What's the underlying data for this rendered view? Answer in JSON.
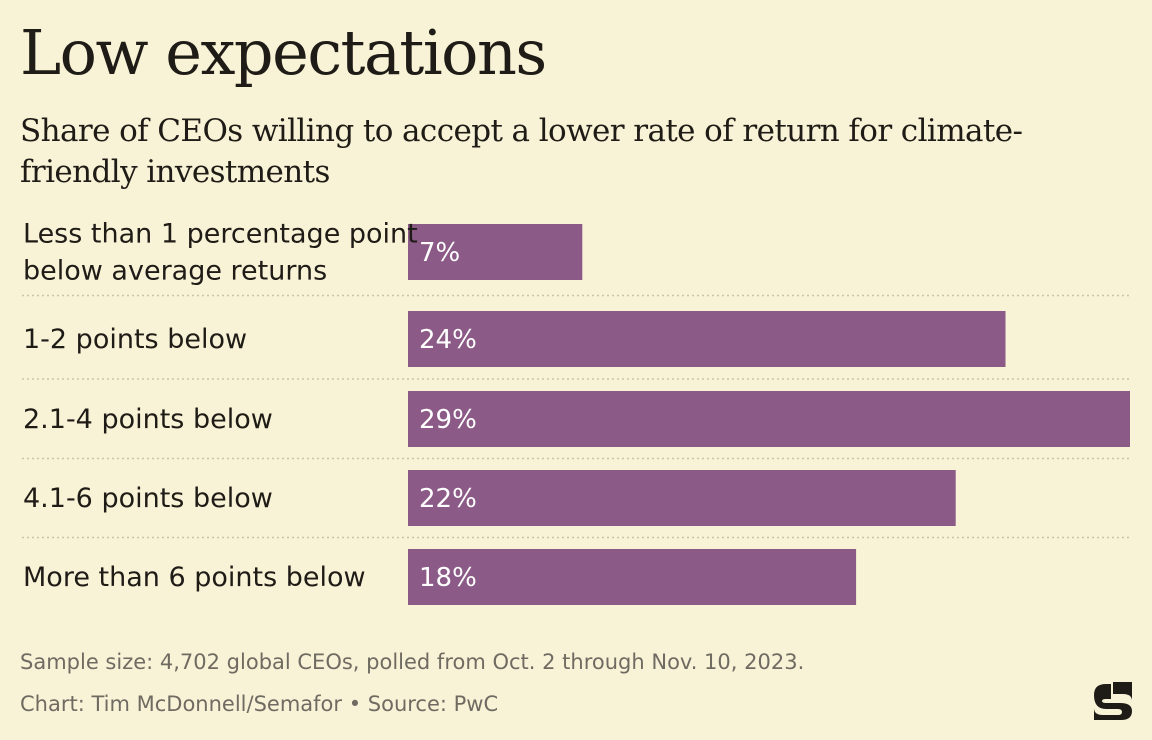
{
  "title": "Low expectations",
  "subtitle": "Share of CEOs willing to accept a lower rate of return for climate-friendly investments",
  "chart_data": {
    "type": "bar",
    "orientation": "horizontal",
    "categories": [
      [
        "Less than 1 percentage point",
        "below average returns"
      ],
      [
        "1-2 points below"
      ],
      [
        "2.1-4 points below"
      ],
      [
        "4.1-6 points below"
      ],
      [
        "More than 6 points below"
      ]
    ],
    "values": [
      7,
      24,
      29,
      22,
      18
    ],
    "value_labels": [
      "7%",
      "24%",
      "29%",
      "22%",
      "18%"
    ],
    "xlim": [
      0,
      29
    ],
    "grid": false,
    "bar_color": "#8b5a87"
  },
  "notes": {
    "sample": "Sample size: 4,702 global CEOs, polled from Oct. 2 through Nov. 10, 2023.",
    "credit": "Chart: Tim McDonnell/Semafor • Source: PwC"
  },
  "colors": {
    "background": "#f8f3d6",
    "bar": "#8b5a87",
    "text": "#1f1b16",
    "note": "#6f6b62",
    "divider": "#c9c4ad"
  },
  "logo_icon": "semafor-s-logo-icon"
}
